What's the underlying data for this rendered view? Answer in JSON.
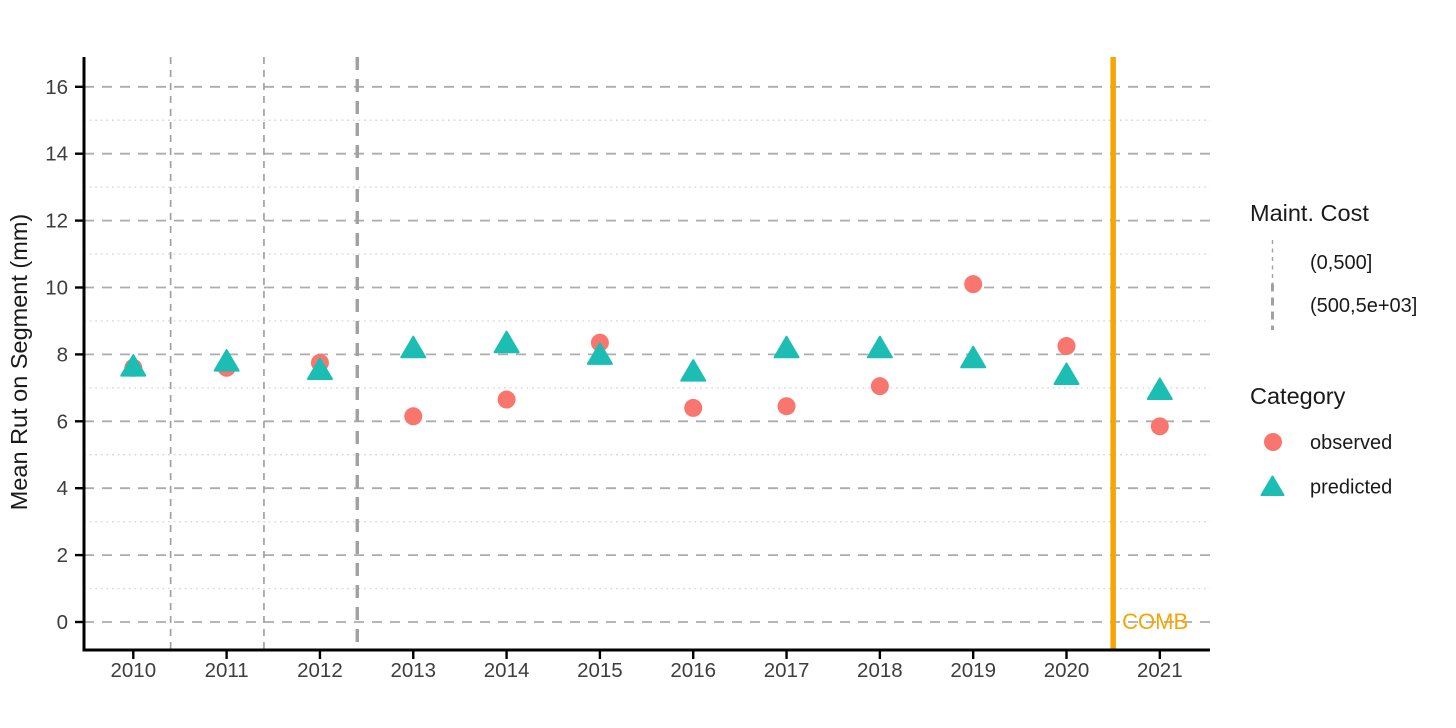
{
  "colors": {
    "observed": "#F8766D",
    "predicted": "#1CBEB4",
    "event_line": "#F6A504",
    "major_grid": "#ACACAC",
    "minor_grid": "#D9D9D9",
    "maint_line": "#A1A1A1",
    "axis_line": "#000000",
    "tick_label": "#3D3D3D",
    "title_text": "#1A1A1A",
    "background": "#FFFFFF"
  },
  "chart_data": {
    "type": "scatter",
    "title": "",
    "xlabel": "",
    "ylabel": "Mean Rut on Segment (mm)",
    "x_ticks": [
      2010,
      2011,
      2012,
      2013,
      2014,
      2015,
      2016,
      2017,
      2018,
      2019,
      2020,
      2021
    ],
    "y_ticks": [
      0,
      2,
      4,
      6,
      8,
      10,
      12,
      14,
      16
    ],
    "y_minor_ticks": [
      1,
      3,
      5,
      7,
      9,
      11,
      13,
      15
    ],
    "xlim": [
      2009.5,
      2021.55
    ],
    "ylim": [
      -0.85,
      16.9
    ],
    "grid": {
      "horizontal_major": "dashed",
      "horizontal_minor": "dotted",
      "vertical": "none"
    },
    "legend_position": "right",
    "categories": [
      2010,
      2011,
      2012,
      2013,
      2014,
      2015,
      2016,
      2017,
      2018,
      2019,
      2020,
      2021
    ],
    "series": [
      {
        "name": "observed",
        "marker": "circle",
        "color": "#F8766D",
        "x": [
          2010,
          2011,
          2012,
          2013,
          2014,
          2015,
          2016,
          2017,
          2018,
          2019,
          2020,
          2021
        ],
        "values": [
          7.6,
          7.6,
          7.75,
          6.15,
          6.65,
          8.35,
          6.4,
          6.45,
          7.05,
          10.1,
          8.25,
          5.85
        ]
      },
      {
        "name": "predicted",
        "marker": "triangle",
        "color": "#1CBEB4",
        "x": [
          2010,
          2011,
          2012,
          2013,
          2014,
          2015,
          2016,
          2017,
          2018,
          2019,
          2020,
          2021
        ],
        "values": [
          7.65,
          7.8,
          7.55,
          8.2,
          8.35,
          8.0,
          7.5,
          8.2,
          8.2,
          7.9,
          7.4,
          6.95
        ]
      }
    ],
    "maint_cost_lines": [
      {
        "x": 2010.4,
        "category": "(0,500]",
        "style": "thin-dashed"
      },
      {
        "x": 2011.4,
        "category": "(0,500]",
        "style": "thin-dashed"
      },
      {
        "x": 2012.4,
        "category": "(500,5e+03]",
        "style": "thick-dashed"
      }
    ],
    "event_line": {
      "x": 2020.5,
      "label": "COMB",
      "color": "#F6A504"
    }
  },
  "legend": {
    "maint_cost": {
      "title": "Maint. Cost",
      "items": [
        {
          "label": "(0,500]",
          "style": "thin-dashed"
        },
        {
          "label": "(500,5e+03]",
          "style": "thick-dashed"
        }
      ]
    },
    "category": {
      "title": "Category",
      "items": [
        {
          "label": "observed",
          "marker": "circle",
          "color": "#F8766D"
        },
        {
          "label": "predicted",
          "marker": "triangle",
          "color": "#1CBEB4"
        }
      ]
    }
  }
}
